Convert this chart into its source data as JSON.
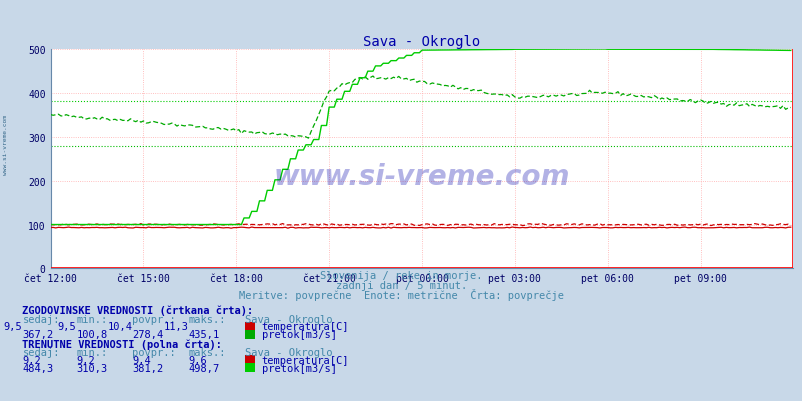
{
  "title": "Sava - Okroglo",
  "subtitle1": "Slovenija / reke in morje.",
  "subtitle2": "zadnji dan / 5 minut.",
  "subtitle3": "Meritve: povprečne  Enote: metrične  Črta: povprečje",
  "bg_color": "#c8d8e8",
  "plot_bg": "#ffffff",
  "xmin": 0,
  "xmax": 288,
  "ymin": 0,
  "ymax": 500,
  "yticks": [
    0,
    100,
    200,
    300,
    400,
    500
  ],
  "xtick_labels": [
    "čet 12:00",
    "čet 15:00",
    "čet 18:00",
    "čet 21:00",
    "pet 00:00",
    "pet 03:00",
    "pet 06:00",
    "pet 09:00"
  ],
  "xtick_positions": [
    0,
    36,
    72,
    108,
    144,
    180,
    216,
    252
  ],
  "hist_avg_pretok": 278.4,
  "curr_avg_pretok": 381.2,
  "hist_pretok_dashed_color": "#00aa00",
  "curr_pretok_solid_color": "#00cc00",
  "temp_color": "#cc0000",
  "watermark_text": "www.si-vreme.com",
  "title_color": "#0000aa",
  "subtitle_color": "#4488aa",
  "table_header_color": "#0000aa",
  "table_label_color": "#4488aa",
  "table_value_color": "#0000aa",
  "table_title1": "ZGODOVINSKE VREDNOSTI (črtkana črta):",
  "table_title2": "TRENUTNE VREDNOSTI (polna črta):",
  "col_headers": [
    "sedaj:",
    "min.:",
    "povpr.:",
    "maks.:",
    "Sava - Okroglo"
  ],
  "hist_temp_row": [
    "9,5",
    "9,5",
    "10,4",
    "11,3"
  ],
  "hist_pretok_row": [
    "367,2",
    "100,8",
    "278,4",
    "435,1"
  ],
  "curr_temp_row": [
    "9,2",
    "9,2",
    "9,4",
    "9,6"
  ],
  "curr_pretok_row": [
    "484,3",
    "310,3",
    "381,2",
    "498,7"
  ],
  "sq_temp_hist_color": "#cc0000",
  "sq_pretok_hist_color": "#00aa00",
  "sq_temp_curr_color": "#cc0000",
  "sq_pretok_curr_color": "#00cc00"
}
